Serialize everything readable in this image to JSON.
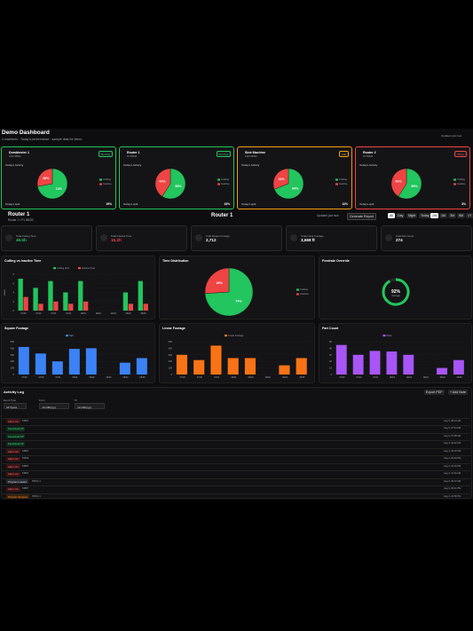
{
  "header": {
    "title": "Demo Dashboard",
    "subtitle": "4 machines · Today's performance · sample data for demo",
    "updated": "Updated just now"
  },
  "machines": [
    {
      "name": "Dombtester 1",
      "sub": "CNC 55032",
      "status": "Running",
      "status_color": "#22c55e",
      "border": "#22c55e",
      "activity": "Today's Activity",
      "legend": [
        "Cutting",
        "Inactive"
      ],
      "values": [
        72,
        28
      ],
      "value_labels": [
        "72%",
        "28%"
      ],
      "colors": [
        "#22c55e",
        "#ef4444"
      ],
      "split_label": "Today's split",
      "split_value": "29%"
    },
    {
      "name": "Router 1",
      "sub": "P1 55032",
      "status": "Running",
      "status_color": "#22c55e",
      "border": "#22c55e",
      "activity": "Today's Activity",
      "legend": [
        "Cutting",
        "Inactive"
      ],
      "values": [
        59,
        41
      ],
      "value_labels": [
        "59%",
        "41%"
      ],
      "colors": [
        "#22c55e",
        "#ef4444"
      ],
      "split_label": "Today's split",
      "split_value": "33%"
    },
    {
      "name": "Sink Machine",
      "sub": "CNC 55032",
      "status": "Idle",
      "status_color": "#f59e0b",
      "border": "#f59e0b",
      "activity": "Today's Activity",
      "legend": [
        "Cutting",
        "Inactive"
      ],
      "values": [
        69,
        31
      ],
      "value_labels": [
        "69%",
        "31%"
      ],
      "colors": [
        "#22c55e",
        "#ef4444"
      ],
      "split_label": "Today's split",
      "split_value": "32%"
    },
    {
      "name": "Router 2",
      "sub": "P2 55032",
      "status": "Offline",
      "status_color": "#ef4444",
      "border": "#ef4444",
      "activity": "Today's Activity",
      "legend": [
        "Cutting",
        "Inactive"
      ],
      "values": [
        59,
        41
      ],
      "value_labels": [
        "59%",
        "41%"
      ],
      "colors": [
        "#22c55e",
        "#ef4444"
      ],
      "split_label": "Today's split",
      "split_value": "8%"
    }
  ],
  "machine": {
    "title": "Router 1",
    "sub": "Router 1 • P1 55032",
    "updated": "Updated just now",
    "report": "Generate Report",
    "shifts": [
      "All",
      "Day",
      "Night"
    ],
    "ranges": [
      "Today",
      "1W",
      "1M",
      "3M",
      "6M",
      "1Y"
    ]
  },
  "stats": [
    {
      "label": "Total Cutting Time",
      "value": "46.5h",
      "color": "#22c55e"
    },
    {
      "label": "Total Inactive Time",
      "value": "16.2h",
      "color": "#ef4444"
    },
    {
      "label": "Total Square Footage",
      "value": "2,712",
      "color": "#ffffff"
    },
    {
      "label": "Total Linear Footage",
      "value": "3,668 ft",
      "color": "#ffffff"
    },
    {
      "label": "Total Part Count",
      "value": "274",
      "color": "#ffffff"
    }
  ],
  "charts": {
    "cutting": {
      "type": "bar",
      "title": "Cutting vs Inactive Time",
      "y_label": "Hours",
      "categories": [
        "07/28",
        "07/29",
        "07/30",
        "07/31",
        "08/01",
        "08/02",
        "08/03",
        "08/04",
        "08/05"
      ],
      "series": [
        {
          "name": "Cutting (hrs)",
          "color": "#22c55e",
          "values": [
            7,
            5,
            6.5,
            4,
            6.5,
            0,
            0,
            4,
            6.5
          ]
        },
        {
          "name": "Inactive (hrs)",
          "color": "#ef4444",
          "values": [
            3,
            1.5,
            2,
            1.5,
            2,
            0,
            0,
            1.5,
            1.5
          ]
        }
      ],
      "ylim": [
        0,
        8
      ],
      "yticks": [
        0,
        2,
        4,
        6,
        8
      ]
    },
    "time": {
      "type": "pie",
      "title": "Time Distribution",
      "legend": [
        "Cutting",
        "Inactive"
      ],
      "values": [
        74,
        26
      ],
      "value_labels": [
        "74%",
        "26%"
      ],
      "colors": [
        "#22c55e",
        "#ef4444"
      ]
    },
    "feed": {
      "type": "donut",
      "title": "Feedrate Override",
      "value": 92,
      "value_label": "92%",
      "caption": "Average",
      "ylim": [
        0,
        100
      ],
      "color": "#22c55e"
    },
    "square": {
      "type": "bar",
      "title": "Square Footage",
      "categories": [
        "07/29",
        "07/30",
        "07/31",
        "08/01",
        "08/02",
        "08/03",
        "08/04",
        "08/05"
      ],
      "series": [
        {
          "name": "Sqft",
          "color": "#3b82f6",
          "values": [
            420,
            320,
            200,
            390,
            400,
            0,
            180,
            250
          ]
        }
      ],
      "ylim": [
        0,
        500
      ],
      "yticks": [
        0,
        100,
        200,
        300,
        400,
        500
      ]
    },
    "linear": {
      "type": "bar",
      "title": "Linear Footage",
      "categories": [
        "07/29",
        "07/30",
        "07/31",
        "08/01",
        "08/02",
        "08/03",
        "08/04",
        "08/05"
      ],
      "series": [
        {
          "name": "Linear Footage",
          "color": "#f97316",
          "values": [
            300,
            220,
            440,
            250,
            250,
            0,
            140,
            250
          ]
        }
      ],
      "ylim": [
        0,
        500
      ],
      "yticks": [
        0,
        100,
        200,
        300,
        400,
        500
      ]
    },
    "parts": {
      "type": "bar",
      "title": "Part Count",
      "categories": [
        "07/29",
        "07/30",
        "07/31",
        "08/01",
        "08/02",
        "08/03",
        "08/04",
        "08/05"
      ],
      "series": [
        {
          "name": "Parts",
          "color": "#a855f7",
          "values": [
            45,
            30,
            36,
            35,
            30,
            0,
            10,
            22
          ]
        }
      ],
      "ylim": [
        0,
        50
      ],
      "yticks": [
        0,
        10,
        20,
        30,
        40,
        50
      ]
    }
  },
  "log": {
    "title": "Activity Log",
    "export": "Export PDF",
    "add": "+ Add Note",
    "filters": [
      {
        "label": "Event Type",
        "value": "All Types"
      },
      {
        "label": "From",
        "value": "mm/dd/yyyy"
      },
      {
        "label": "To",
        "value": "mm/dd/yyyy"
      }
    ],
    "rows": [
      {
        "event": "Alarm On",
        "kind": "red",
        "detail": "63857",
        "date": "Aug 5, 08:14 AM"
      },
      {
        "event": "Feed Hold Off",
        "kind": "green",
        "detail": "",
        "date": "Aug 5, 07:43 AM"
      },
      {
        "event": "Feed Hold Off",
        "kind": "green",
        "detail": "",
        "date": "Aug 5, 07:38 AM"
      },
      {
        "event": "Feed Hold Off",
        "kind": "green",
        "detail": "",
        "date": "Aug 4, 04:22 PM"
      },
      {
        "event": "Alarm On",
        "kind": "red",
        "detail": "63857",
        "date": "Aug 4, 03:07 PM"
      },
      {
        "event": "Alarm On",
        "kind": "red",
        "detail": "63650",
        "date": "Aug 4, 02:54 PM"
      },
      {
        "event": "Alarm On",
        "kind": "red",
        "detail": "63857",
        "date": "Aug 4, 01:16 PM"
      },
      {
        "event": "Alarm On",
        "kind": "red",
        "detail": "63857",
        "date": "Aug 4, 11:30 AM"
      },
      {
        "event": "Program Loaded",
        "kind": "gray",
        "detail": "PROG 1",
        "date": "Aug 4, 09:12 AM"
      },
      {
        "event": "Alarm On",
        "kind": "red",
        "detail": "63857",
        "date": "Aug 3, 05:41 PM"
      },
      {
        "event": "Program Stopped",
        "kind": "orange",
        "detail": "PROG 1",
        "date": "Aug 3, 04:58 PM"
      }
    ]
  }
}
